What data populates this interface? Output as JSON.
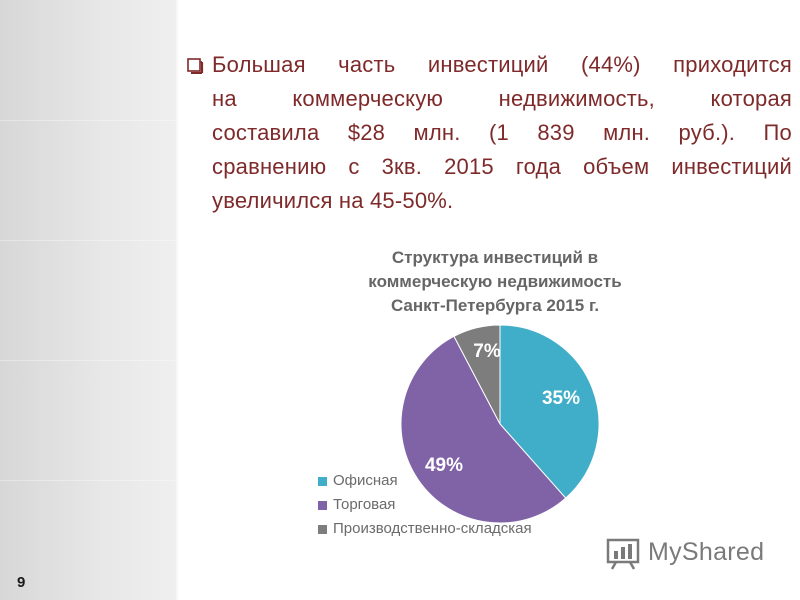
{
  "slide": {
    "number": "9",
    "bullet_lines": [
      "Большая часть инвестиций (44%) приходится",
      "на коммерческую недвижимость, которая",
      "составила $28 млн. (1 839 млн. руб.). По",
      "сравнению с 3кв. 2015 года объем инвестиций",
      "увеличился на 45-50%."
    ],
    "text_color": "#7f2a2a"
  },
  "chart_data": {
    "type": "pie",
    "title_lines": [
      "Структура инвестиций в",
      "коммерческую недвижимость",
      "Санкт-Петербурга 2015 г."
    ],
    "slices": [
      {
        "label": "Офисная",
        "value": 35,
        "data_label": "35%",
        "color": "#41aec9"
      },
      {
        "label": "Торговая",
        "value": 49,
        "data_label": "49%",
        "color": "#8063a7"
      },
      {
        "label": "Производственно-складская",
        "value": 7,
        "data_label": "7%",
        "color": "#7d7d7d"
      }
    ],
    "legend_position": "left-bottom"
  },
  "watermark": {
    "text": "MyShared",
    "icon": "bar-chart-icon"
  }
}
